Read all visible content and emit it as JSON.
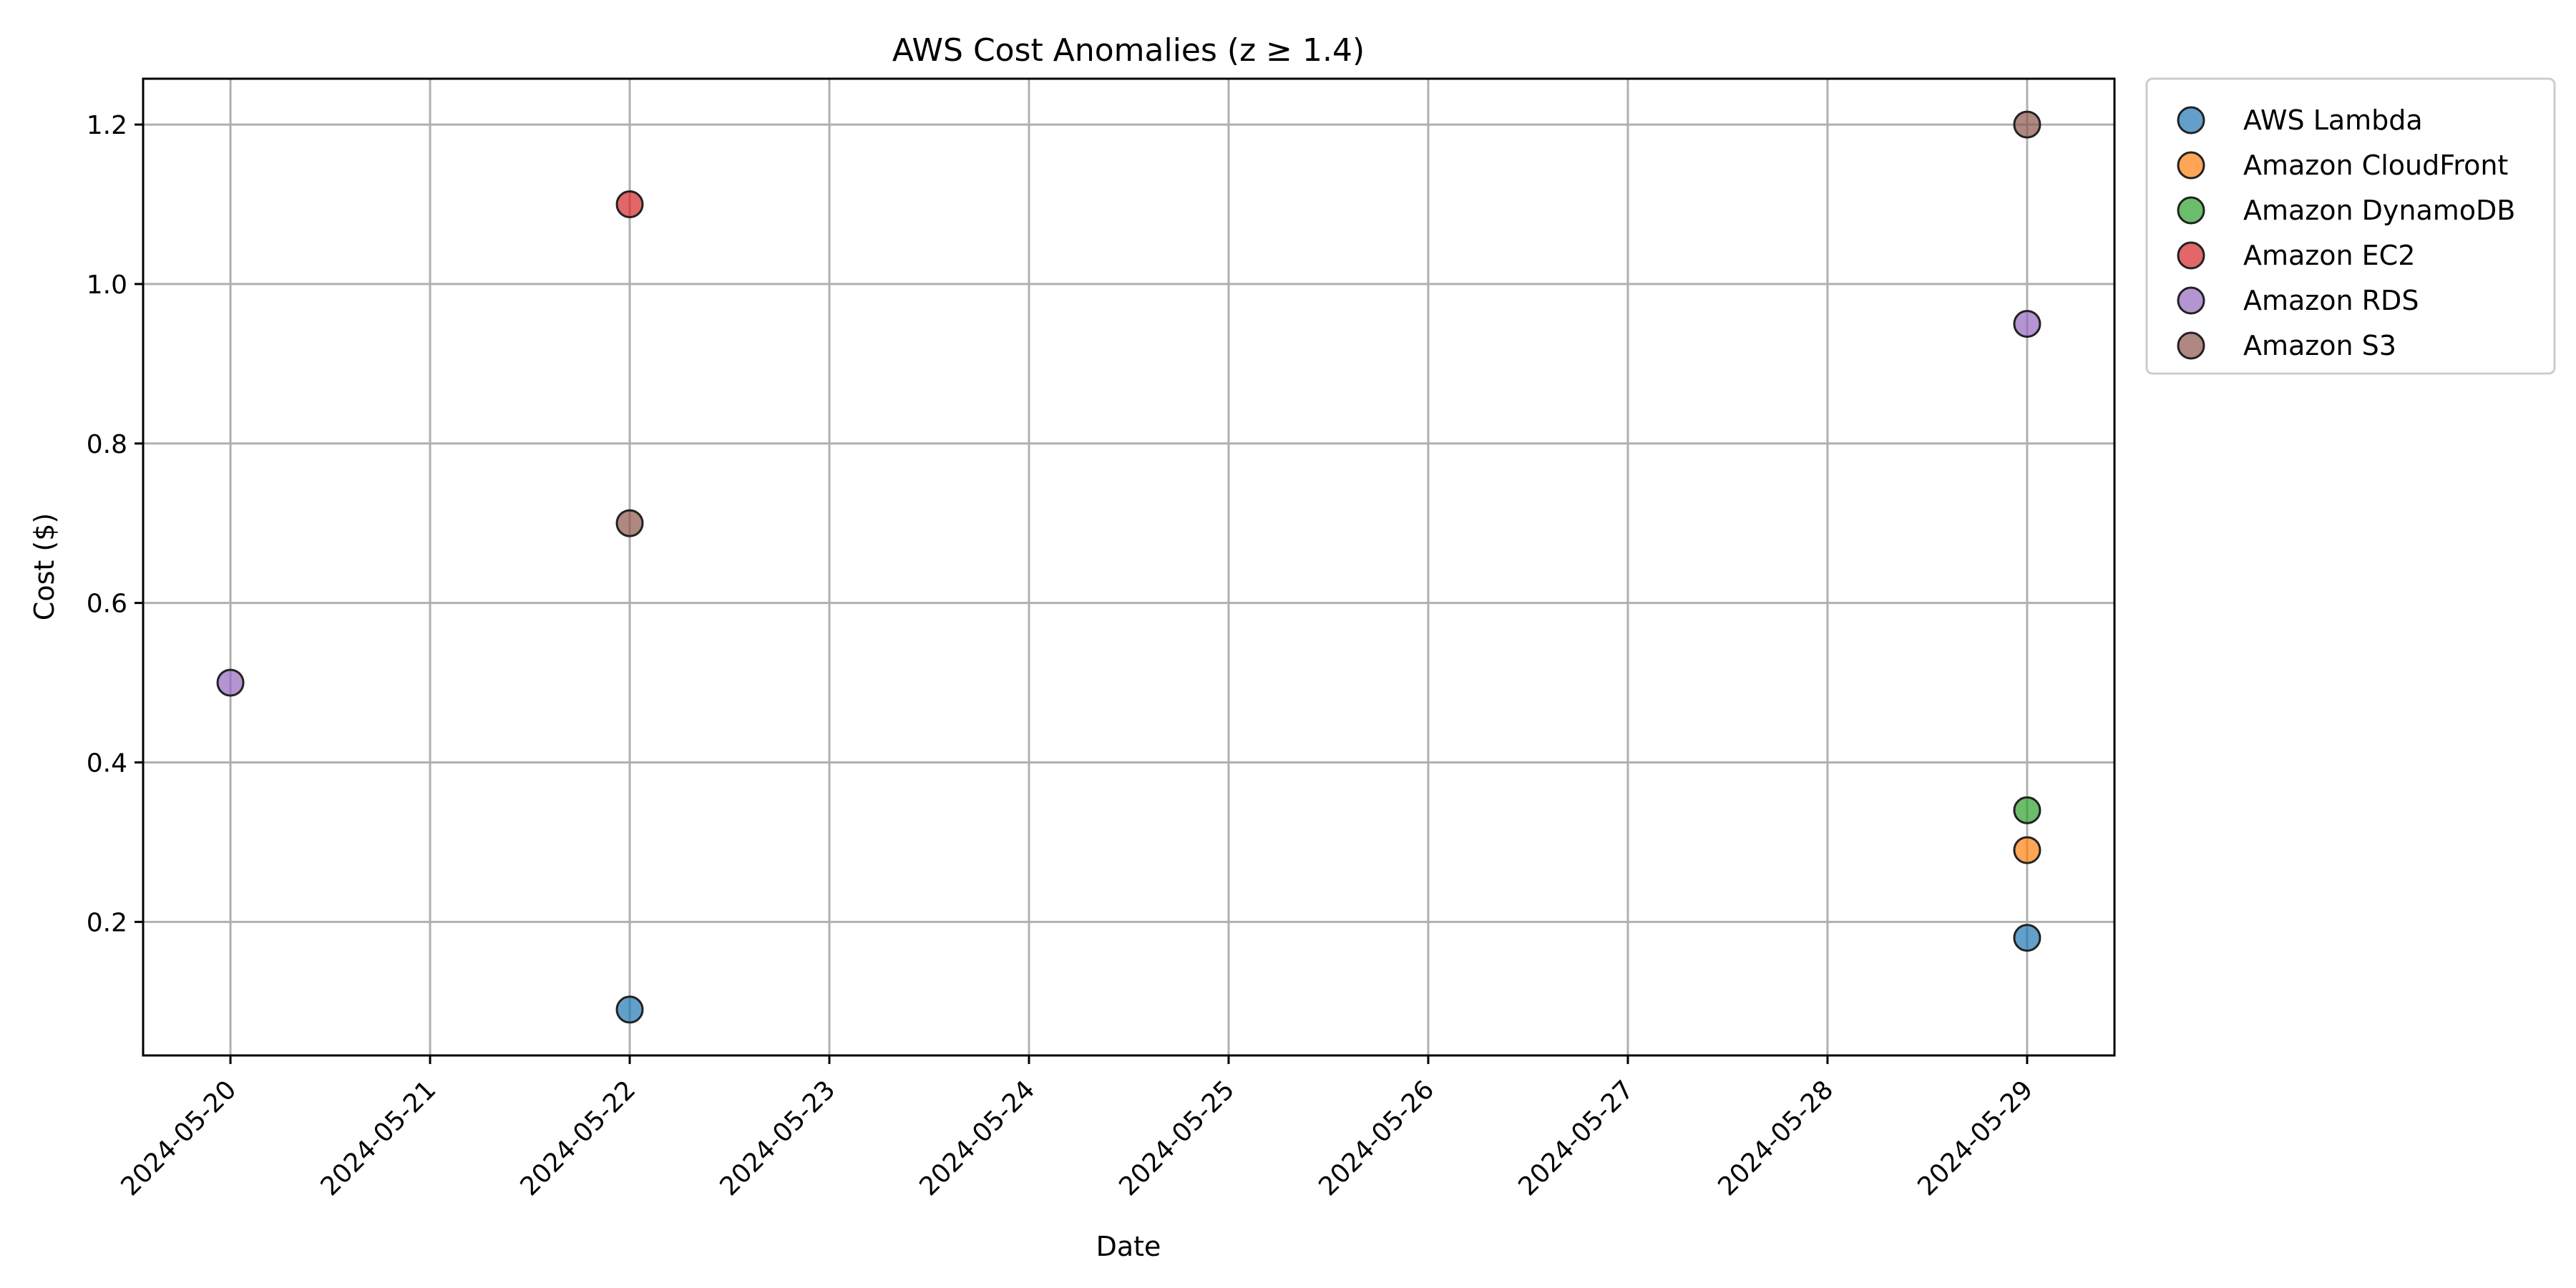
{
  "chart_data": {
    "type": "scatter",
    "title": "AWS Cost Anomalies (z ≥ 1.4)",
    "xlabel": "Date",
    "ylabel": "Cost ($)",
    "x_ticks": [
      "2024-05-20",
      "2024-05-21",
      "2024-05-22",
      "2024-05-23",
      "2024-05-24",
      "2024-05-25",
      "2024-05-26",
      "2024-05-27",
      "2024-05-28",
      "2024-05-29"
    ],
    "y_ticks": [
      "0.2",
      "0.4",
      "0.6",
      "0.8",
      "1.0",
      "1.2"
    ],
    "xlim": [
      "2024-05-19T13:30",
      "2024-05-29T10:30"
    ],
    "ylim": [
      0.0325,
      1.2575
    ],
    "grid": true,
    "legend_position": "outside-right-top",
    "series": [
      {
        "name": "AWS Lambda",
        "color": "#1f77b4",
        "points": [
          {
            "x": "2024-05-22",
            "y": 0.09
          },
          {
            "x": "2024-05-29",
            "y": 0.18
          }
        ]
      },
      {
        "name": "Amazon CloudFront",
        "color": "#ff7f0e",
        "points": [
          {
            "x": "2024-05-29",
            "y": 0.29
          }
        ]
      },
      {
        "name": "Amazon DynamoDB",
        "color": "#2ca02c",
        "points": [
          {
            "x": "2024-05-29",
            "y": 0.34
          }
        ]
      },
      {
        "name": "Amazon EC2",
        "color": "#d62728",
        "points": [
          {
            "x": "2024-05-22",
            "y": 1.1
          }
        ]
      },
      {
        "name": "Amazon RDS",
        "color": "#9467bd",
        "points": [
          {
            "x": "2024-05-20",
            "y": 0.5
          },
          {
            "x": "2024-05-29",
            "y": 0.95
          }
        ]
      },
      {
        "name": "Amazon S3",
        "color": "#8c564b",
        "points": [
          {
            "x": "2024-05-22",
            "y": 0.7
          },
          {
            "x": "2024-05-29",
            "y": 1.2
          }
        ]
      }
    ]
  }
}
